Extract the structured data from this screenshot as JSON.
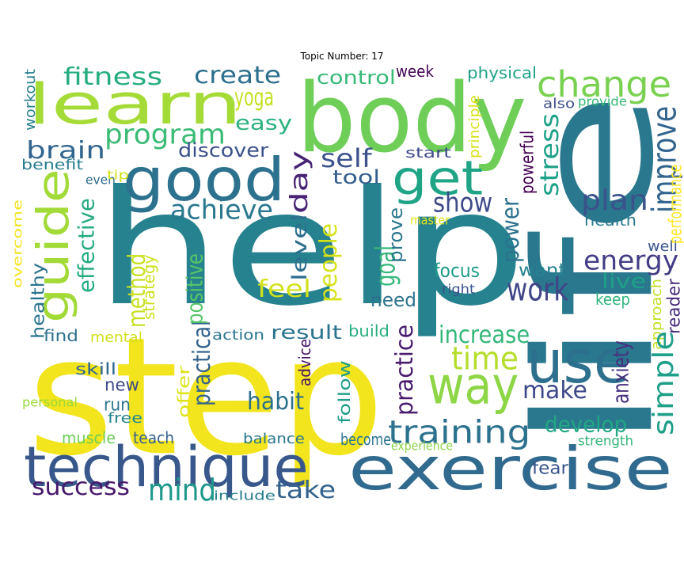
{
  "title": "Topic Number: 17",
  "words": [
    {
      "text": "help",
      "color": "#26828e"
    },
    {
      "text": "step",
      "color": "#f2e51d"
    },
    {
      "text": "life",
      "color": "#2a788e"
    },
    {
      "text": "body",
      "color": "#6ece58"
    },
    {
      "text": "exercise",
      "color": "#306a8e"
    },
    {
      "text": "technique",
      "color": "#38588c"
    },
    {
      "text": "learn",
      "color": "#a5db36"
    },
    {
      "text": "good",
      "color": "#2c718e"
    },
    {
      "text": "use",
      "color": "#2d708e"
    },
    {
      "text": "way",
      "color": "#8ed645"
    },
    {
      "text": "get",
      "color": "#20a486"
    },
    {
      "text": "change",
      "color": "#7ad151"
    },
    {
      "text": "guide",
      "color": "#a2da37"
    },
    {
      "text": "training",
      "color": "#2c728e"
    },
    {
      "text": "program",
      "color": "#3bbb75"
    },
    {
      "text": "fitness",
      "color": "#26ad81"
    },
    {
      "text": "create",
      "color": "#2d708e"
    },
    {
      "text": "brain",
      "color": "#32658e"
    },
    {
      "text": "yoga",
      "color": "#c5e021"
    },
    {
      "text": "easy",
      "color": "#2cb17e"
    },
    {
      "text": "achieve",
      "color": "#2a788e"
    },
    {
      "text": "discover",
      "color": "#3b528b"
    },
    {
      "text": "self",
      "color": "#3b528b"
    },
    {
      "text": "tool",
      "color": "#345f8d"
    },
    {
      "text": "show",
      "color": "#3e4a89"
    },
    {
      "text": "day",
      "color": "#482374"
    },
    {
      "text": "level",
      "color": "#2e6f8e"
    },
    {
      "text": "control",
      "color": "#38b977"
    },
    {
      "text": "week",
      "color": "#450457"
    },
    {
      "text": "physical",
      "color": "#1fa287"
    },
    {
      "text": "also",
      "color": "#3c4f8a"
    },
    {
      "text": "provide",
      "color": "#37b878"
    },
    {
      "text": "improve",
      "color": "#32658e"
    },
    {
      "text": "stress",
      "color": "#1fa188"
    },
    {
      "text": "plan",
      "color": "#3b528b"
    },
    {
      "text": "health",
      "color": "#2a788e"
    },
    {
      "text": "energy",
      "color": "#433e85"
    },
    {
      "text": "work",
      "color": "#414487"
    },
    {
      "text": "want",
      "color": "#26828e"
    },
    {
      "text": "live",
      "color": "#1fa088"
    },
    {
      "text": "keep",
      "color": "#2fb47c"
    },
    {
      "text": "well",
      "color": "#39558c"
    },
    {
      "text": "reader",
      "color": "#472c7a"
    },
    {
      "text": "approach",
      "color": "#c2df23"
    },
    {
      "text": "anxiety",
      "color": "#46307e"
    },
    {
      "text": "simple",
      "color": "#1f9f88"
    },
    {
      "text": "strength",
      "color": "#34b679"
    },
    {
      "text": "develop",
      "color": "#22a785"
    },
    {
      "text": "fear",
      "color": "#39568c"
    },
    {
      "text": "make",
      "color": "#3e4989"
    },
    {
      "text": "time",
      "color": "#b5de2b"
    },
    {
      "text": "increase",
      "color": "#35b779"
    },
    {
      "text": "focus",
      "color": "#1e9b8a"
    },
    {
      "text": "right",
      "color": "#3b528b"
    },
    {
      "text": "power",
      "color": "#2c728e"
    },
    {
      "text": "powerful",
      "color": "#440154"
    },
    {
      "text": "start",
      "color": "#3e4a89"
    },
    {
      "text": "master",
      "color": "#e4e419"
    },
    {
      "text": "principle",
      "color": "#d8e219"
    },
    {
      "text": "performance",
      "color": "#fde725"
    },
    {
      "text": "goal",
      "color": "#35b779"
    },
    {
      "text": "prove",
      "color": "#2a778e"
    },
    {
      "text": "need",
      "color": "#2c728e"
    },
    {
      "text": "people",
      "color": "#d5e21a"
    },
    {
      "text": "feel",
      "color": "#d2e21b"
    },
    {
      "text": "result",
      "color": "#2b758e"
    },
    {
      "text": "build",
      "color": "#29af7f"
    },
    {
      "text": "practice",
      "color": "#481b6d"
    },
    {
      "text": "advice",
      "color": "#481467"
    },
    {
      "text": "follow",
      "color": "#1f9e89"
    },
    {
      "text": "become",
      "color": "#2b748e"
    },
    {
      "text": "experience",
      "color": "#8bd646"
    },
    {
      "text": "include",
      "color": "#287d8e"
    },
    {
      "text": "take",
      "color": "#33638d"
    },
    {
      "text": "mind",
      "color": "#1f988b"
    },
    {
      "text": "success",
      "color": "#48186a"
    },
    {
      "text": "balance",
      "color": "#2a788e"
    },
    {
      "text": "teach",
      "color": "#34608d"
    },
    {
      "text": "muscle",
      "color": "#6ece58"
    },
    {
      "text": "free",
      "color": "#25858e"
    },
    {
      "text": "personal",
      "color": "#9bd93c"
    },
    {
      "text": "run",
      "color": "#2b758e"
    },
    {
      "text": "new",
      "color": "#3e4989"
    },
    {
      "text": "skill",
      "color": "#31688e"
    },
    {
      "text": "offer",
      "color": "#dde318"
    },
    {
      "text": "practical",
      "color": "#33638d"
    },
    {
      "text": "habit",
      "color": "#2d708e"
    },
    {
      "text": "action",
      "color": "#2a768e"
    },
    {
      "text": "positive",
      "color": "#56c667"
    },
    {
      "text": "method",
      "color": "#c8e020"
    },
    {
      "text": "strategy",
      "color": "#cde11d"
    },
    {
      "text": "mental",
      "color": "#d0e11c"
    },
    {
      "text": "find",
      "color": "#2d718e"
    },
    {
      "text": "healthy",
      "color": "#2b748e"
    },
    {
      "text": "effective",
      "color": "#25ab82"
    },
    {
      "text": "overcome",
      "color": "#f1e51d"
    },
    {
      "text": "benefit",
      "color": "#287d8e"
    },
    {
      "text": "even",
      "color": "#2e6e8e"
    },
    {
      "text": "tip",
      "color": "#d2e21b"
    },
    {
      "text": "workout",
      "color": "#277f8e"
    }
  ]
}
